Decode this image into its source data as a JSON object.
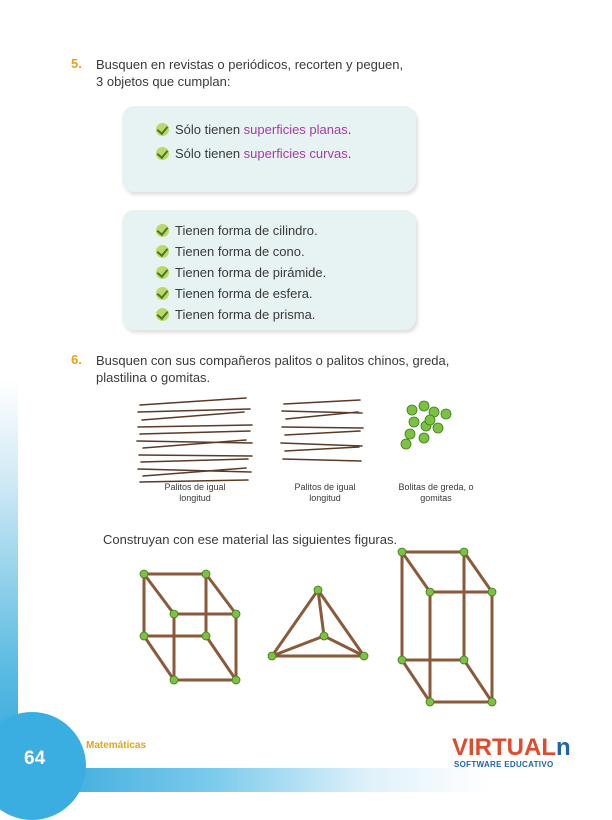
{
  "footer": {
    "page_number": "64",
    "subject": "Matemáticas"
  },
  "logo": {
    "name": "VIRTUAL",
    "mark": "n",
    "subtitle": "SOFTWARE EDUCATIVO"
  },
  "q5": {
    "number": "5.",
    "line1": "Busquen en revistas o periódicos, recorten y peguen,",
    "line2": "3 objetos que cumplan:",
    "box1": [
      {
        "prefix": "Sólo tienen ",
        "highlight": "superficies planas",
        "suffix": "."
      },
      {
        "prefix": "Sólo tienen ",
        "highlight": "superficies curvas",
        "suffix": "."
      }
    ],
    "box2": [
      "Tienen forma de cilindro.",
      "Tienen forma de cono.",
      "Tienen forma de pirámide.",
      "Tienen forma de esfera.",
      "Tienen forma de prisma."
    ]
  },
  "q6": {
    "number": "6.",
    "line1": "Busquen con sus compañeros palitos o palitos chinos, greda,",
    "line2": "plastilina o gomitas.",
    "captions": [
      {
        "l1": "Palitos de igual",
        "l2": "longitud"
      },
      {
        "l1": "Palitos de igual",
        "l2": "longitud"
      },
      {
        "l1": "Bolitas de greda, o",
        "l2": "gomitas"
      }
    ],
    "instruction": "Construyan con ese material las siguientes figuras."
  },
  "colors": {
    "accent": "#e3a419",
    "highlight": "#a33ba6",
    "box": "#e7f2f2",
    "stick": "#8a5a3b",
    "ball": "#7cc242",
    "band": "#2aa2d8"
  }
}
